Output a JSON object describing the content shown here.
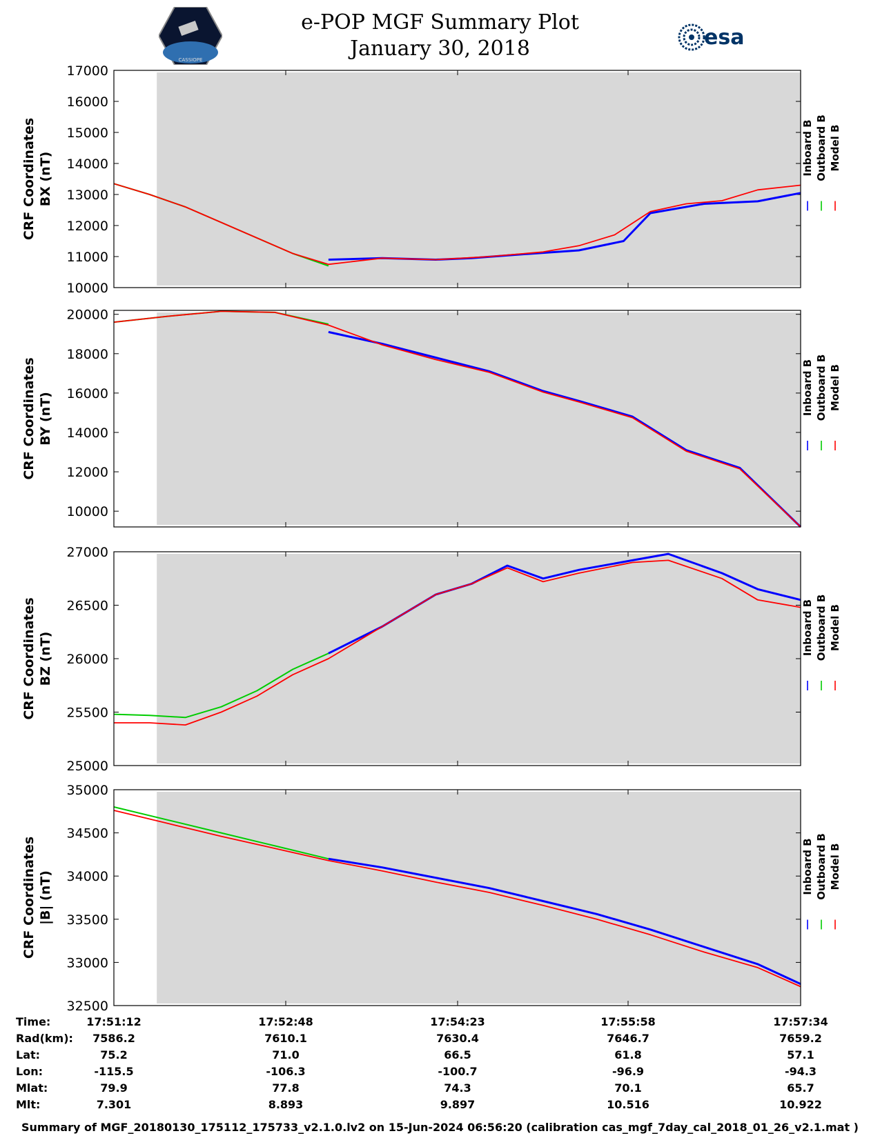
{
  "title": "e-POP MGF Summary Plot",
  "subtitle": "January 30, 2018",
  "esa_logo_text": "esa",
  "mission_logo_text": "CASSIOPE",
  "colors": {
    "inboard": "#0000ff",
    "outboard": "#00cc00",
    "model": "#ff0000",
    "panel_bg": "#d8d8d8"
  },
  "legend": [
    "Inboard B",
    "Outboard B",
    "Model B"
  ],
  "chart_data": [
    {
      "type": "line",
      "ylabel_line1": "CRF Coordinates",
      "ylabel_line2": "BX (nT)",
      "ylim": [
        10000,
        17000
      ],
      "yticks": [
        10000,
        11000,
        12000,
        13000,
        14000,
        15000,
        16000,
        17000
      ],
      "xlim": [
        0,
        384
      ],
      "shaded_range": [
        24,
        384
      ],
      "series": [
        {
          "name": "Inboard B",
          "x": [
            120,
            150,
            180,
            200,
            230,
            260,
            285,
            300,
            330,
            360,
            384
          ],
          "values": [
            10900,
            10950,
            10900,
            10950,
            11080,
            11200,
            11500,
            12400,
            12700,
            12780,
            13050
          ]
        },
        {
          "name": "Outboard B",
          "x": [
            0,
            20,
            40,
            60,
            80,
            100,
            110,
            120
          ],
          "values": [
            13350,
            13000,
            12600,
            12100,
            11600,
            11100,
            10900,
            10700
          ]
        },
        {
          "name": "Model B",
          "x": [
            0,
            20,
            40,
            60,
            80,
            100,
            120,
            150,
            180,
            210,
            240,
            260,
            280,
            300,
            320,
            340,
            360,
            384
          ],
          "values": [
            13350,
            13000,
            12600,
            12100,
            11600,
            11100,
            10750,
            10950,
            10900,
            11000,
            11150,
            11350,
            11700,
            12450,
            12700,
            12800,
            13150,
            13300
          ]
        }
      ]
    },
    {
      "type": "line",
      "ylabel_line1": "CRF Coordinates",
      "ylabel_line2": "BY (nT)",
      "ylim": [
        9200,
        20200
      ],
      "yticks": [
        10000,
        12000,
        14000,
        16000,
        18000,
        20000
      ],
      "xlim": [
        0,
        384
      ],
      "shaded_range": [
        24,
        384
      ],
      "series": [
        {
          "name": "Inboard B",
          "x": [
            120,
            150,
            180,
            210,
            240,
            260,
            290,
            320,
            350,
            384
          ],
          "values": [
            19100,
            18500,
            17800,
            17100,
            16100,
            15600,
            14800,
            13100,
            12200,
            9200
          ]
        },
        {
          "name": "Outboard B",
          "x": [
            0,
            30,
            60,
            90,
            120
          ],
          "values": [
            19600,
            19900,
            20150,
            20100,
            19500
          ]
        },
        {
          "name": "Model B",
          "x": [
            0,
            30,
            60,
            90,
            120,
            150,
            180,
            210,
            240,
            260,
            290,
            320,
            350,
            384
          ],
          "values": [
            19600,
            19900,
            20150,
            20100,
            19450,
            18450,
            17700,
            17050,
            16050,
            15550,
            14750,
            13050,
            12150,
            9200
          ]
        }
      ]
    },
    {
      "type": "line",
      "ylabel_line1": "CRF Coordinates",
      "ylabel_line2": "BZ (nT)",
      "ylim": [
        25000,
        27000
      ],
      "yticks": [
        25000,
        25500,
        26000,
        26500,
        27000
      ],
      "xlim": [
        0,
        384
      ],
      "shaded_range": [
        24,
        384
      ],
      "series": [
        {
          "name": "Inboard B",
          "x": [
            120,
            150,
            180,
            200,
            220,
            240,
            260,
            290,
            310,
            340,
            360,
            384
          ],
          "values": [
            26050,
            26300,
            26600,
            26700,
            26870,
            26750,
            26830,
            26920,
            26980,
            26800,
            26650,
            26550
          ]
        },
        {
          "name": "Outboard B",
          "x": [
            0,
            20,
            40,
            60,
            80,
            100,
            120
          ],
          "values": [
            25480,
            25470,
            25450,
            25550,
            25700,
            25900,
            26050
          ]
        },
        {
          "name": "Model B",
          "x": [
            0,
            20,
            40,
            60,
            80,
            100,
            120,
            150,
            180,
            200,
            220,
            240,
            260,
            290,
            310,
            340,
            360,
            384
          ],
          "values": [
            25400,
            25400,
            25380,
            25500,
            25650,
            25850,
            26000,
            26300,
            26600,
            26700,
            26850,
            26720,
            26800,
            26900,
            26920,
            26750,
            26550,
            26480
          ]
        }
      ]
    },
    {
      "type": "line",
      "ylabel_line1": "CRF Coordinates",
      "ylabel_line2": "|B| (nT)",
      "ylim": [
        32500,
        35000
      ],
      "yticks": [
        32500,
        33000,
        33500,
        34000,
        34500,
        35000
      ],
      "xlim": [
        0,
        384
      ],
      "shaded_range": [
        24,
        384
      ],
      "series": [
        {
          "name": "Inboard B",
          "x": [
            120,
            150,
            180,
            210,
            240,
            270,
            300,
            330,
            360,
            384
          ],
          "values": [
            34200,
            34100,
            33980,
            33860,
            33710,
            33560,
            33380,
            33180,
            32980,
            32750
          ]
        },
        {
          "name": "Outboard B",
          "x": [
            0,
            30,
            60,
            90,
            120
          ],
          "values": [
            34800,
            34650,
            34500,
            34350,
            34200
          ]
        },
        {
          "name": "Model B",
          "x": [
            0,
            30,
            60,
            90,
            120,
            150,
            180,
            210,
            240,
            270,
            300,
            330,
            360,
            384
          ],
          "values": [
            34760,
            34610,
            34460,
            34320,
            34180,
            34060,
            33930,
            33810,
            33660,
            33500,
            33320,
            33120,
            32940,
            32720
          ]
        }
      ]
    }
  ],
  "info_table": {
    "labels": [
      "Time:",
      "Rad(km):",
      "Lat:",
      "Lon:",
      "Mlat:",
      "Mlt:"
    ],
    "columns": [
      [
        "17:51:12",
        "7586.2",
        "75.2",
        "-115.5",
        "79.9",
        "7.301"
      ],
      [
        "17:52:48",
        "7610.1",
        "71.0",
        "-106.3",
        "77.8",
        "8.893"
      ],
      [
        "17:54:23",
        "7630.4",
        "66.5",
        "-100.7",
        "74.3",
        "9.897"
      ],
      [
        "17:55:58",
        "7646.7",
        "61.8",
        "-96.9",
        "70.1",
        "10.516"
      ],
      [
        "17:57:34",
        "7659.2",
        "57.1",
        "-94.3",
        "65.7",
        "10.922"
      ]
    ]
  },
  "footer": "Summary of MGF_20180130_175112_175733_v2.1.0.lv2 on 15-Jun-2024 06:56:20 (calibration cas_mgf_7day_cal_2018_01_26_v2.1.mat )"
}
